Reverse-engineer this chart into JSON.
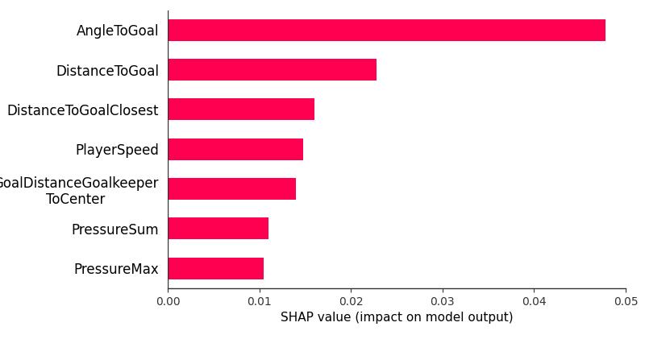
{
  "categories": [
    "PressureMax",
    "PressureSum",
    "GoalDistanceGoalkeeper\nToCenter",
    "PlayerSpeed",
    "DistanceToGoalClosest",
    "DistanceToGoal",
    "AngleToGoal"
  ],
  "values": [
    0.0105,
    0.011,
    0.014,
    0.0148,
    0.016,
    0.0228,
    0.0478
  ],
  "bar_color": "#FF0050",
  "xlabel": "SHAP value (impact on model output)",
  "xlim": [
    0,
    0.05
  ],
  "xticks": [
    0.0,
    0.01,
    0.02,
    0.03,
    0.04,
    0.05
  ],
  "background_color": "#ffffff",
  "bar_height": 0.55,
  "xlabel_fontsize": 11,
  "tick_fontsize": 10,
  "label_fontsize": 12
}
